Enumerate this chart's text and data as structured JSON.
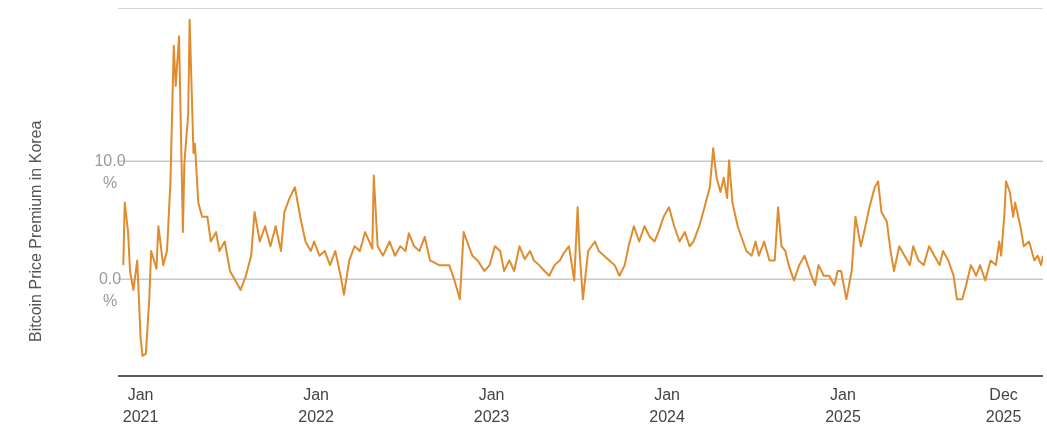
{
  "chart_data": {
    "type": "line",
    "ylabel": "Bitcoin Price Premium in Korea",
    "xlim": [
      "2020-11-15",
      "2026-02-21"
    ],
    "xticks": [
      {
        "value": "2021-01-01",
        "label": "Jan 2021"
      },
      {
        "value": "2022-01-01",
        "label": "Jan 2022"
      },
      {
        "value": "2023-01-01",
        "label": "Jan 2023"
      },
      {
        "value": "2024-01-01",
        "label": "Jan 2024"
      },
      {
        "value": "2025-01-01",
        "label": "Jan 2025"
      },
      {
        "value": "2025-12-01",
        "label": "Dec 2025"
      }
    ],
    "ylim": [
      -8.2,
      23
    ],
    "yticks": [
      {
        "value": 0,
        "label": "0.0 %"
      },
      {
        "value": 10,
        "label": "10.0 %"
      }
    ],
    "grid": "y",
    "legend": false,
    "marker": "none",
    "line_style": "solid",
    "x": [
      "2020-11-26",
      "2020-11-29",
      "2020-12-06",
      "2020-12-10",
      "2020-12-17",
      "2020-12-25",
      "2021-01-01",
      "2021-01-05",
      "2021-01-12",
      "2021-01-19",
      "2021-01-23",
      "2021-02-03",
      "2021-02-07",
      "2021-02-17",
      "2021-02-25",
      "2021-03-04",
      "2021-03-08",
      "2021-03-11",
      "2021-03-15",
      "2021-03-22",
      "2021-03-26",
      "2021-03-30",
      "2021-04-02",
      "2021-04-10",
      "2021-04-13",
      "2021-04-21",
      "2021-04-24",
      "2021-05-01",
      "2021-05-09",
      "2021-05-20",
      "2021-05-27",
      "2021-06-07",
      "2021-06-14",
      "2021-06-25",
      "2021-07-06",
      "2021-07-17",
      "2021-07-28",
      "2021-08-08",
      "2021-08-19",
      "2021-08-26",
      "2021-09-06",
      "2021-09-17",
      "2021-09-28",
      "2021-10-09",
      "2021-10-20",
      "2021-10-27",
      "2021-11-07",
      "2021-11-18",
      "2021-11-29",
      "2021-12-10",
      "2021-12-21",
      "2021-12-28",
      "2022-01-08",
      "2022-01-19",
      "2022-01-30",
      "2022-02-10",
      "2022-02-21",
      "2022-02-28",
      "2022-03-11",
      "2022-03-22",
      "2022-04-02",
      "2022-04-13",
      "2022-04-28",
      "2022-05-01",
      "2022-05-09",
      "2022-05-20",
      "2022-06-03",
      "2022-06-14",
      "2022-06-25",
      "2022-07-06",
      "2022-07-13",
      "2022-07-24",
      "2022-08-04",
      "2022-08-15",
      "2022-08-26",
      "2022-09-14",
      "2022-10-05",
      "2022-10-16",
      "2022-10-27",
      "2022-11-04",
      "2022-11-11",
      "2022-11-22",
      "2022-12-03",
      "2022-12-17",
      "2022-12-28",
      "2023-01-08",
      "2023-01-19",
      "2023-01-27",
      "2023-02-07",
      "2023-02-17",
      "2023-02-28",
      "2023-03-11",
      "2023-03-22",
      "2023-03-30",
      "2023-04-10",
      "2023-04-21",
      "2023-05-01",
      "2023-05-12",
      "2023-05-23",
      "2023-05-31",
      "2023-06-11",
      "2023-06-22",
      "2023-06-29",
      "2023-07-03",
      "2023-07-10",
      "2023-07-21",
      "2023-08-04",
      "2023-08-12",
      "2023-08-23",
      "2023-09-03",
      "2023-09-14",
      "2023-09-24",
      "2023-10-05",
      "2023-10-13",
      "2023-10-24",
      "2023-11-04",
      "2023-11-15",
      "2023-11-26",
      "2023-12-06",
      "2023-12-14",
      "2023-12-25",
      "2024-01-05",
      "2024-01-16",
      "2024-01-27",
      "2024-02-07",
      "2024-02-17",
      "2024-02-25",
      "2024-03-08",
      "2024-03-19",
      "2024-03-30",
      "2024-04-06",
      "2024-04-13",
      "2024-04-21",
      "2024-04-28",
      "2024-05-05",
      "2024-05-09",
      "2024-05-16",
      "2024-05-27",
      "2024-06-07",
      "2024-06-14",
      "2024-06-25",
      "2024-07-03",
      "2024-07-10",
      "2024-07-21",
      "2024-08-01",
      "2024-08-12",
      "2024-08-19",
      "2024-08-26",
      "2024-09-03",
      "2024-09-10",
      "2024-09-21",
      "2024-10-02",
      "2024-10-13",
      "2024-10-24",
      "2024-11-04",
      "2024-11-11",
      "2024-11-22",
      "2024-12-03",
      "2024-12-14",
      "2024-12-21",
      "2024-12-28",
      "2025-01-08",
      "2025-01-19",
      "2025-01-27",
      "2025-02-07",
      "2025-02-14",
      "2025-02-25",
      "2025-03-08",
      "2025-03-15",
      "2025-03-22",
      "2025-04-02",
      "2025-04-10",
      "2025-04-17",
      "2025-04-28",
      "2025-05-09",
      "2025-05-20",
      "2025-05-27",
      "2025-06-07",
      "2025-06-18",
      "2025-06-29",
      "2025-07-10",
      "2025-07-21",
      "2025-07-28",
      "2025-08-08",
      "2025-08-19",
      "2025-08-26",
      "2025-09-06",
      "2025-09-14",
      "2025-09-24",
      "2025-10-05",
      "2025-10-13",
      "2025-10-24",
      "2025-11-04",
      "2025-11-15",
      "2025-11-22",
      "2025-11-26",
      "2025-12-03",
      "2025-12-06",
      "2025-12-14",
      "2025-12-21",
      "2025-12-25",
      "2026-01-05",
      "2026-01-12",
      "2026-01-23",
      "2026-02-03",
      "2026-02-10",
      "2026-02-17",
      "2026-02-21"
    ],
    "series": [
      {
        "color": "#df8c2e",
        "values": [
          1.2,
          6.5,
          4,
          0.7,
          -0.9,
          1.6,
          -5,
          -6.5,
          -6.3,
          -1.7,
          2.4,
          0.9,
          4.5,
          1.2,
          2.4,
          8.2,
          14.8,
          19.8,
          16.4,
          20.6,
          12.3,
          4,
          9.8,
          14,
          22,
          10.7,
          11.5,
          6.5,
          5.3,
          5.3,
          3.2,
          4,
          2.4,
          3.2,
          0.7,
          -0.1,
          -0.9,
          0.3,
          2,
          5.7,
          3.2,
          4.5,
          2.8,
          4.5,
          2.4,
          5.7,
          6.9,
          7.8,
          5.3,
          3.2,
          2.4,
          3.2,
          2,
          2.4,
          1.2,
          2.4,
          0.3,
          -1.3,
          1.6,
          2.8,
          2.4,
          4,
          2.6,
          8.8,
          2.8,
          2,
          3.2,
          2,
          2.8,
          2.4,
          3.9,
          2.8,
          2.4,
          3.6,
          1.6,
          1.2,
          1.2,
          -0.1,
          -1.7,
          4,
          3.2,
          2,
          1.6,
          0.7,
          1.2,
          2.8,
          2.4,
          0.7,
          1.6,
          0.7,
          2.8,
          1.7,
          2.4,
          1.6,
          1.2,
          0.7,
          0.3,
          1.2,
          1.6,
          2.2,
          2.8,
          -0.1,
          6.1,
          2.4,
          -1.7,
          2.4,
          3.2,
          2.4,
          2,
          1.6,
          1.2,
          0.3,
          1.2,
          2.8,
          4.5,
          3.2,
          4.5,
          3.6,
          3.2,
          4,
          5.3,
          6.1,
          4.5,
          3.2,
          4,
          2.8,
          3.2,
          4.5,
          6.1,
          7.8,
          11.1,
          8.6,
          7.4,
          8.6,
          6.9,
          10.1,
          6.5,
          4.5,
          3.2,
          2.4,
          2,
          3.2,
          2,
          3.2,
          1.6,
          1.6,
          6.1,
          2.8,
          2.4,
          1.2,
          -0.1,
          1.2,
          2,
          0.7,
          -0.5,
          1.2,
          0.3,
          0.3,
          -0.5,
          0.7,
          0.7,
          -1.7,
          0.7,
          5.3,
          2.8,
          4,
          6.1,
          7.8,
          8.3,
          5.7,
          4.9,
          2.4,
          0.7,
          2.8,
          2,
          1.2,
          2.8,
          1.6,
          1.2,
          2.8,
          2,
          1.2,
          2.4,
          1.6,
          0.3,
          -1.7,
          -1.7,
          -0.5,
          1.2,
          0.3,
          1.2,
          -0.1,
          1.6,
          1.2,
          3.2,
          2,
          5.7,
          8.3,
          7.4,
          5.3,
          6.5,
          4.5,
          2.8,
          3.2,
          1.6,
          2,
          1.2,
          2
        ]
      }
    ]
  }
}
